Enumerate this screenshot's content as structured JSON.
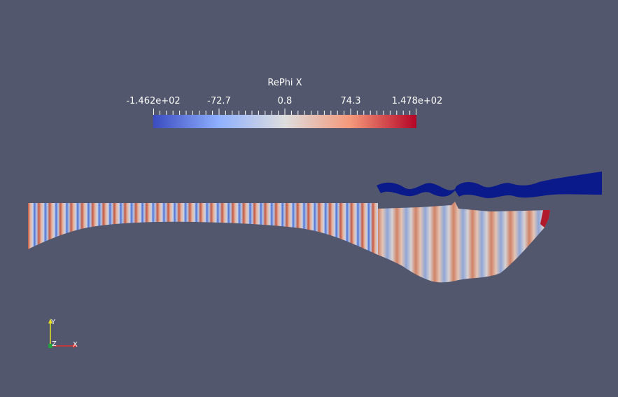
{
  "scalar_bar": {
    "title": "RePhi X",
    "labels": [
      "-1.462e+02",
      "-72.7",
      "0.8",
      "74.3",
      "1.478e+02"
    ],
    "range": [
      -146.2,
      147.8
    ],
    "colormap": {
      "low": "#3b4cc0",
      "mid": "#dddddd",
      "high": "#b40426"
    }
  },
  "orientation_axes": {
    "x_label": "X",
    "y_label": "Y",
    "z_label": "Z",
    "x_color": "#e03030",
    "y_color": "#e8e020",
    "z_color": "#20a040"
  },
  "render": {
    "background": "#52576e",
    "obstacle_color": "#0a1a8a"
  }
}
